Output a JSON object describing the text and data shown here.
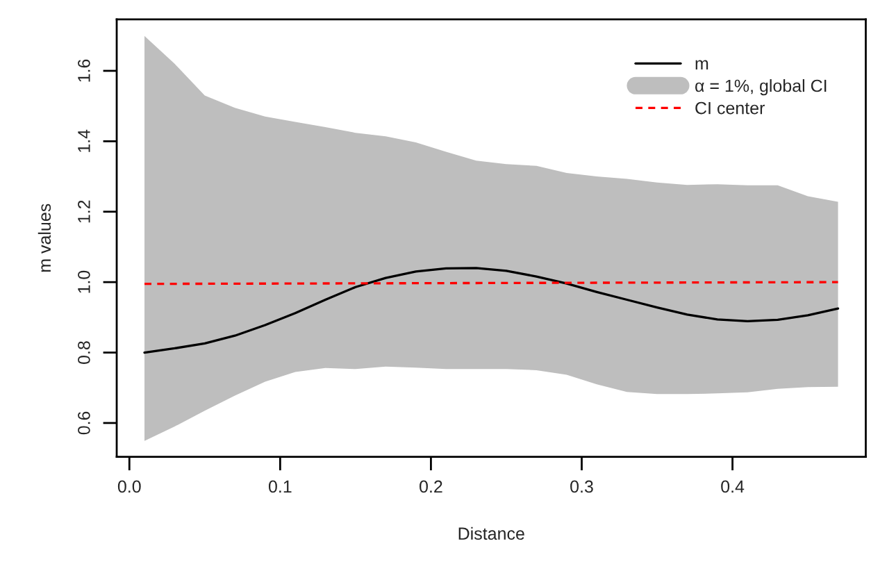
{
  "chart_data": {
    "type": "line",
    "xlabel": "Distance",
    "ylabel": "m values",
    "xlim": [
      -0.0084,
      0.4884
    ],
    "ylim": [
      0.504,
      1.746
    ],
    "xticks": [
      {
        "value": 0.0,
        "label": "0.0"
      },
      0.1,
      0.2,
      0.3,
      0.4
    ],
    "yticks": [
      0.6,
      0.8,
      {
        "value": 1.0,
        "label": "1.0"
      },
      1.2,
      1.4,
      1.6
    ],
    "grid": false,
    "legend": "top right",
    "series": [
      {
        "name": "m",
        "color": "#000000",
        "line_style": "solid",
        "x": [
          0.01,
          0.03,
          0.05,
          0.07,
          0.09,
          0.11,
          0.13,
          0.15,
          0.17,
          0.19,
          0.21,
          0.23,
          0.25,
          0.27,
          0.29,
          0.31,
          0.33,
          0.35,
          0.37,
          0.39,
          0.41,
          0.43,
          0.45,
          0.47
        ],
        "values": [
          0.8,
          0.812,
          0.826,
          0.848,
          0.878,
          0.912,
          0.95,
          0.986,
          1.012,
          1.03,
          1.039,
          1.04,
          1.032,
          1.016,
          0.996,
          0.972,
          0.95,
          0.928,
          0.908,
          0.894,
          0.889,
          0.893,
          0.906,
          0.925
        ]
      },
      {
        "name": "α = 1%, global CI",
        "type": "area",
        "color": "#bebebe",
        "x": [
          0.01,
          0.03,
          0.05,
          0.07,
          0.09,
          0.11,
          0.13,
          0.15,
          0.17,
          0.19,
          0.21,
          0.23,
          0.25,
          0.27,
          0.29,
          0.31,
          0.33,
          0.35,
          0.37,
          0.39,
          0.41,
          0.43,
          0.45,
          0.47
        ],
        "values": [
          null,
          null,
          null,
          null,
          null,
          null,
          null,
          null,
          null,
          null,
          null,
          null,
          null,
          null,
          null,
          null,
          null,
          null,
          null,
          null,
          null,
          null,
          null,
          null
        ],
        "upper": [
          1.699,
          1.62,
          1.53,
          1.495,
          1.47,
          1.455,
          1.44,
          1.424,
          1.414,
          1.397,
          1.37,
          1.345,
          1.335,
          1.33,
          1.31,
          1.3,
          1.293,
          1.283,
          1.276,
          1.278,
          1.275,
          1.275,
          1.244,
          1.228
        ],
        "lower": [
          0.549,
          0.59,
          0.635,
          0.678,
          0.717,
          0.745,
          0.756,
          0.753,
          0.76,
          0.757,
          0.753,
          0.753,
          0.753,
          0.75,
          0.737,
          0.71,
          0.688,
          0.682,
          0.682,
          0.684,
          0.687,
          0.697,
          0.702,
          0.703
        ]
      },
      {
        "name": "CI center",
        "color": "#ff0000",
        "line_style": "dashed",
        "x": [
          0.01,
          0.47
        ],
        "values": [
          0.995,
          1.0
        ]
      }
    ]
  }
}
